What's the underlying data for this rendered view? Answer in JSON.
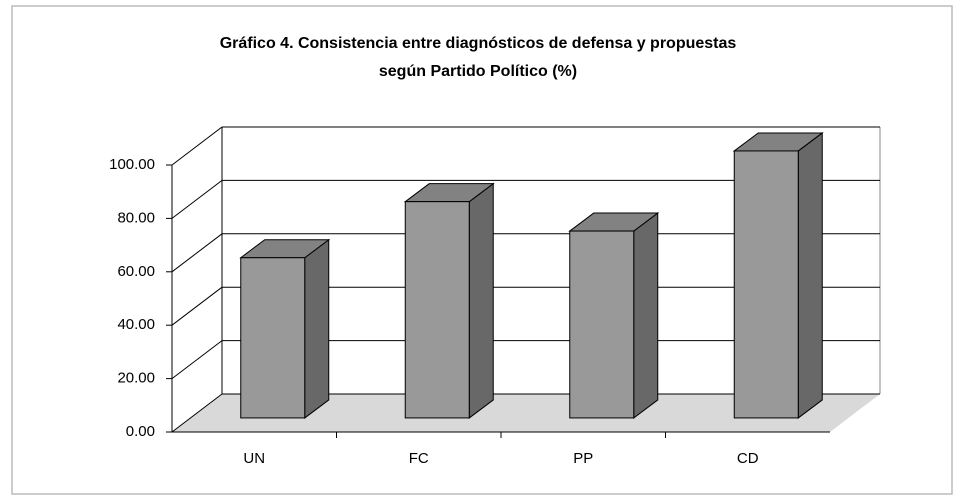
{
  "chart_data": {
    "type": "bar3d",
    "title": [
      "Gráfico 4. Consistencia entre diagnósticos de defensa y propuestas",
      "según Partido Político (%)"
    ],
    "categories": [
      "UN",
      "FC",
      "PP",
      "CD"
    ],
    "values": [
      60,
      81,
      70,
      100
    ],
    "color": "#999999",
    "ylim": [
      0,
      100
    ],
    "yticks": [
      {
        "value": 0,
        "label": "0.00"
      },
      {
        "value": 20,
        "label": "20.00"
      },
      {
        "value": 40,
        "label": "40.00"
      },
      {
        "value": 60,
        "label": "60.00"
      },
      {
        "value": 80,
        "label": "80.00"
      },
      {
        "value": 100,
        "label": "100.00"
      }
    ],
    "grid": true
  }
}
